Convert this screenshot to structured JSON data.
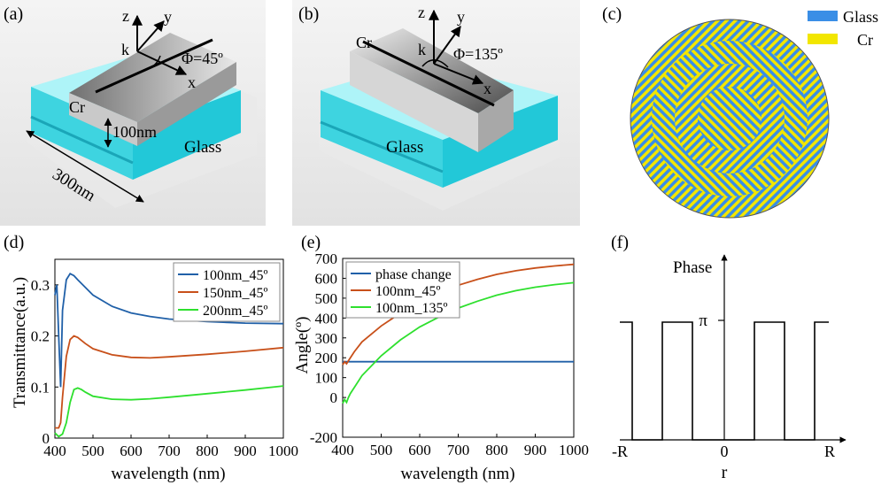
{
  "panels": {
    "a": {
      "label": "(a)",
      "axes": {
        "z": "z",
        "y": "y",
        "k": "k",
        "x": "x"
      },
      "phi": "Φ=45º",
      "material_top": "Cr",
      "height": "100nm",
      "substrate": "Glass",
      "period": "300nm"
    },
    "b": {
      "label": "(b)",
      "axes": {
        "z": "z",
        "y": "y",
        "k": "k",
        "x": "x"
      },
      "phi": "Φ=135º",
      "material_top": "Cr",
      "substrate": "Glass"
    },
    "c": {
      "label": "(c)",
      "legend": [
        {
          "name": "Glass",
          "color": "#3a8ee6"
        },
        {
          "name": "Cr",
          "color": "#f2e600"
        }
      ]
    },
    "f": {
      "label": "(f)",
      "ylabel": "Phase",
      "pi_label": "π",
      "xlabel": "r",
      "ticks": [
        "-R",
        "0",
        "R"
      ]
    }
  },
  "chart_data": [
    {
      "id": "d",
      "panel_label": "(d)",
      "type": "line",
      "xlabel": "wavelength (nm)",
      "ylabel": "Transmittance(a.u.)",
      "xlim": [
        400,
        1000
      ],
      "ylim": [
        0,
        0.35
      ],
      "xticks": [
        400,
        500,
        600,
        700,
        800,
        900,
        1000
      ],
      "yticks": [
        0,
        0.1,
        0.2,
        0.3
      ],
      "ytick_labels": [
        "0",
        "0.1",
        "0.2",
        "0.3"
      ],
      "legend_position": "top-right",
      "series": [
        {
          "name": "100nm_45º",
          "color": "#2060a8",
          "x": [
            400,
            405,
            410,
            415,
            420,
            430,
            440,
            450,
            460,
            480,
            500,
            550,
            600,
            650,
            700,
            800,
            900,
            1000
          ],
          "y": [
            0.28,
            0.3,
            0.2,
            0.1,
            0.25,
            0.31,
            0.322,
            0.318,
            0.31,
            0.295,
            0.28,
            0.258,
            0.245,
            0.238,
            0.233,
            0.228,
            0.225,
            0.224
          ]
        },
        {
          "name": "150nm_45º",
          "color": "#c8501a",
          "x": [
            400,
            405,
            410,
            415,
            420,
            430,
            440,
            450,
            460,
            480,
            500,
            550,
            600,
            650,
            700,
            800,
            900,
            1000
          ],
          "y": [
            0.02,
            0.02,
            0.02,
            0.03,
            0.08,
            0.16,
            0.193,
            0.2,
            0.197,
            0.185,
            0.175,
            0.163,
            0.158,
            0.157,
            0.159,
            0.164,
            0.17,
            0.177
          ]
        },
        {
          "name": "200nm_45º",
          "color": "#2ee02e",
          "x": [
            400,
            410,
            420,
            430,
            440,
            450,
            460,
            470,
            480,
            500,
            550,
            600,
            650,
            700,
            800,
            900,
            1000
          ],
          "y": [
            0.01,
            0.003,
            0.008,
            0.03,
            0.07,
            0.095,
            0.098,
            0.095,
            0.09,
            0.082,
            0.076,
            0.075,
            0.077,
            0.08,
            0.087,
            0.094,
            0.102
          ]
        }
      ]
    },
    {
      "id": "e",
      "panel_label": "(e)",
      "type": "line",
      "xlabel": "wavelength (nm)",
      "ylabel": "Angle(º)",
      "xlim": [
        400,
        1000
      ],
      "ylim": [
        -200,
        700
      ],
      "xticks": [
        400,
        500,
        600,
        700,
        800,
        900,
        1000
      ],
      "yticks": [
        -200,
        0,
        100,
        200,
        300,
        400,
        500,
        600,
        700
      ],
      "legend_position": "top-left",
      "series": [
        {
          "name": "phase change",
          "color": "#2060a8",
          "x": [
            400,
            1000
          ],
          "y": [
            180,
            180
          ]
        },
        {
          "name": "100nm_45º",
          "color": "#c8501a",
          "x": [
            400,
            405,
            410,
            415,
            420,
            430,
            450,
            500,
            550,
            600,
            650,
            700,
            750,
            800,
            850,
            900,
            950,
            1000
          ],
          "y": [
            165,
            180,
            170,
            185,
            200,
            230,
            280,
            360,
            425,
            480,
            525,
            565,
            595,
            620,
            638,
            652,
            662,
            670
          ]
        },
        {
          "name": "100nm_135º",
          "color": "#2ee02e",
          "x": [
            400,
            405,
            410,
            415,
            420,
            430,
            450,
            500,
            550,
            600,
            650,
            700,
            750,
            800,
            850,
            900,
            950,
            1000
          ],
          "y": [
            -30,
            -10,
            -25,
            0,
            20,
            50,
            110,
            210,
            290,
            355,
            405,
            450,
            485,
            515,
            538,
            555,
            568,
            578
          ]
        }
      ]
    }
  ]
}
